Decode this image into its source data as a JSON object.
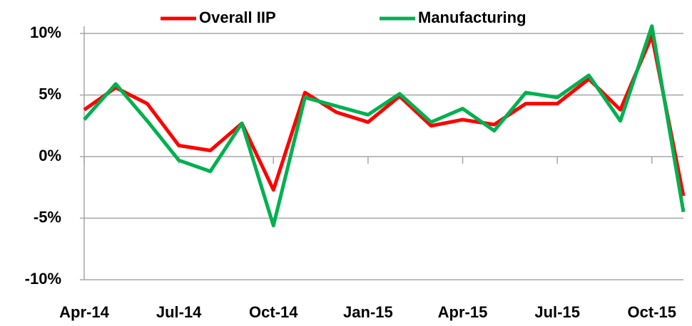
{
  "chart_data": {
    "type": "line",
    "categories": [
      "Apr-14",
      null,
      null,
      "Jul-14",
      null,
      null,
      "Oct-14",
      null,
      null,
      "Jan-15",
      null,
      null,
      "Apr-15",
      null,
      null,
      "Jul-15",
      null,
      null,
      "Oct-15",
      null
    ],
    "series": [
      {
        "name": "Overall IIP",
        "color": "#ff0000",
        "values": [
          3.8,
          5.6,
          4.3,
          0.9,
          0.5,
          2.7,
          -2.7,
          5.2,
          3.6,
          2.8,
          4.9,
          2.5,
          3.0,
          2.6,
          4.3,
          4.3,
          6.3,
          3.8,
          9.8,
          -3.2
        ]
      },
      {
        "name": "Manufacturing",
        "color": "#00b050",
        "values": [
          3.0,
          5.9,
          2.9,
          -0.3,
          -1.2,
          2.7,
          -5.6,
          4.8,
          4.1,
          3.4,
          5.1,
          2.8,
          3.9,
          2.1,
          5.2,
          4.8,
          6.6,
          2.9,
          10.6,
          -4.5
        ]
      }
    ],
    "ylim": [
      -10,
      10
    ],
    "yticks": [
      {
        "value": -10,
        "label": "-10%"
      },
      {
        "value": -5,
        "label": "-5%"
      },
      {
        "value": 0,
        "label": "0%"
      },
      {
        "value": 5,
        "label": "5%"
      },
      {
        "value": 10,
        "label": "10%"
      }
    ],
    "grid": true,
    "legend": "top"
  }
}
